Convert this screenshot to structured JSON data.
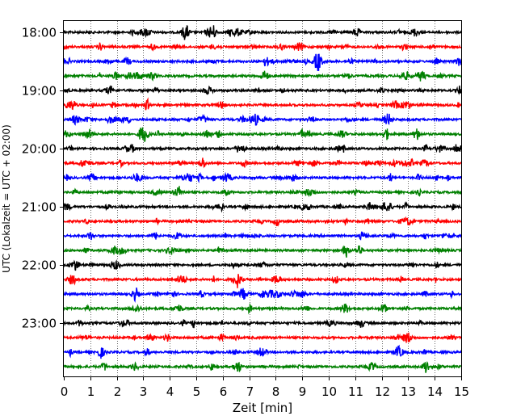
{
  "chart_data": {
    "type": "line",
    "title": "",
    "xlabel": "Zeit  [min]",
    "ylabel": "UTC (Lokalzeit = UTC + 02:00)",
    "xlim": [
      0,
      15
    ],
    "x_ticks": [
      "0",
      "1",
      "2",
      "3",
      "4",
      "5",
      "6",
      "7",
      "8",
      "9",
      "10",
      "11",
      "12",
      "13",
      "14",
      "15"
    ],
    "y_tick_labels": [
      "18:00",
      "19:00",
      "20:00",
      "21:00",
      "22:00",
      "23:00"
    ],
    "grid": "vertical dotted at each minute",
    "trace_colors": [
      "#000000",
      "#ff0000",
      "#0000ff",
      "#008000"
    ],
    "series": [
      {
        "start": "18:00",
        "color": "#000000"
      },
      {
        "start": "18:15",
        "color": "#ff0000"
      },
      {
        "start": "18:30",
        "color": "#0000ff"
      },
      {
        "start": "18:45",
        "color": "#008000"
      },
      {
        "start": "19:00",
        "color": "#000000"
      },
      {
        "start": "19:15",
        "color": "#ff0000"
      },
      {
        "start": "19:30",
        "color": "#0000ff"
      },
      {
        "start": "19:45",
        "color": "#008000"
      },
      {
        "start": "20:00",
        "color": "#000000"
      },
      {
        "start": "20:15",
        "color": "#ff0000"
      },
      {
        "start": "20:30",
        "color": "#0000ff"
      },
      {
        "start": "20:45",
        "color": "#008000"
      },
      {
        "start": "21:00",
        "color": "#000000"
      },
      {
        "start": "21:15",
        "color": "#ff0000"
      },
      {
        "start": "21:30",
        "color": "#0000ff"
      },
      {
        "start": "21:45",
        "color": "#008000"
      },
      {
        "start": "22:00",
        "color": "#000000"
      },
      {
        "start": "22:15",
        "color": "#ff0000"
      },
      {
        "start": "22:30",
        "color": "#0000ff"
      },
      {
        "start": "22:45",
        "color": "#008000"
      },
      {
        "start": "23:00",
        "color": "#000000"
      },
      {
        "start": "23:15",
        "color": "#ff0000"
      },
      {
        "start": "23:30",
        "color": "#0000ff"
      },
      {
        "start": "23:45",
        "color": "#008000"
      }
    ]
  }
}
